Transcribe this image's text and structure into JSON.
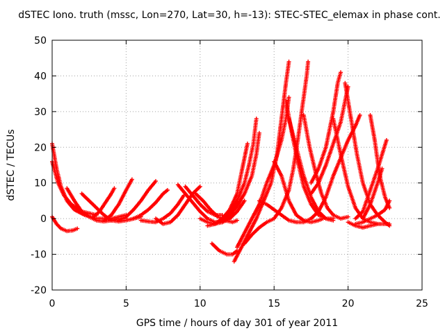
{
  "chart_data": {
    "type": "scatter",
    "title": "dSTEC Iono. truth (mssc, Lon=270, Lat=30, h=-13): STEC-STEC_elemax in phase cont.",
    "xlabel": "GPS time / hours of day 301 of year 2011",
    "ylabel": "dSTEC  / TECUs",
    "xlim": [
      0,
      25
    ],
    "ylim": [
      -20,
      50
    ],
    "xticks": [
      0,
      5,
      10,
      15,
      20,
      25
    ],
    "yticks": [
      -20,
      -10,
      0,
      10,
      20,
      30,
      40,
      50
    ],
    "grid": true,
    "marker": "+",
    "series_color": "#ff0000",
    "arcs": [
      [
        [
          0.0,
          21.0
        ],
        [
          0.3,
          14.0
        ],
        [
          0.6,
          9.0
        ],
        [
          1.0,
          5.0
        ],
        [
          1.5,
          2.5
        ],
        [
          2.2,
          1.0
        ],
        [
          3.0,
          0.0
        ],
        [
          4.0,
          0.0
        ],
        [
          5.0,
          1.0
        ]
      ],
      [
        [
          0.0,
          16.0
        ],
        [
          0.4,
          10.0
        ],
        [
          0.8,
          6.5
        ],
        [
          1.3,
          4.0
        ],
        [
          2.0,
          2.0
        ],
        [
          3.0,
          1.0
        ]
      ],
      [
        [
          0.0,
          0.5
        ],
        [
          0.3,
          -1.5
        ],
        [
          0.6,
          -2.8
        ],
        [
          1.0,
          -3.5
        ],
        [
          1.4,
          -3.3
        ],
        [
          1.7,
          -2.8
        ]
      ],
      [
        [
          1.0,
          8.5
        ],
        [
          1.5,
          5.0
        ],
        [
          2.0,
          2.0
        ],
        [
          2.5,
          0.5
        ],
        [
          3.0,
          -0.5
        ],
        [
          3.5,
          -0.8
        ],
        [
          4.0,
          -0.5
        ],
        [
          4.5,
          0.0
        ],
        [
          5.0,
          0.0
        ]
      ],
      [
        [
          2.0,
          7.0
        ],
        [
          2.5,
          5.0
        ],
        [
          3.0,
          3.0
        ],
        [
          3.5,
          1.0
        ],
        [
          4.0,
          -0.5
        ],
        [
          4.5,
          -0.8
        ],
        [
          5.0,
          -0.5
        ],
        [
          5.5,
          0.0
        ],
        [
          6.0,
          0.5
        ]
      ],
      [
        [
          2.8,
          0.5
        ],
        [
          3.2,
          2.0
        ],
        [
          3.6,
          4.5
        ],
        [
          4.0,
          7.0
        ],
        [
          4.2,
          8.5
        ]
      ],
      [
        [
          3.5,
          -0.5
        ],
        [
          4.0,
          1.0
        ],
        [
          4.5,
          4.0
        ],
        [
          5.0,
          8.0
        ],
        [
          5.4,
          11.0
        ]
      ],
      [
        [
          4.5,
          -0.5
        ],
        [
          5.0,
          0.5
        ],
        [
          5.5,
          2.5
        ],
        [
          6.0,
          5.0
        ],
        [
          6.5,
          8.0
        ],
        [
          7.0,
          10.5
        ]
      ],
      [
        [
          5.5,
          0.0
        ],
        [
          6.0,
          1.0
        ],
        [
          6.5,
          2.5
        ],
        [
          7.0,
          4.5
        ],
        [
          7.5,
          7.0
        ],
        [
          7.8,
          8.0
        ]
      ],
      [
        [
          6.0,
          -0.5
        ],
        [
          6.5,
          -0.8
        ],
        [
          7.0,
          -1.0
        ],
        [
          7.5,
          0.0
        ],
        [
          8.0,
          1.5
        ],
        [
          8.5,
          4.0
        ],
        [
          8.9,
          6.5
        ]
      ],
      [
        [
          7.0,
          0.0
        ],
        [
          7.5,
          -1.5
        ],
        [
          8.0,
          -1.0
        ],
        [
          8.5,
          1.0
        ],
        [
          9.0,
          4.0
        ],
        [
          9.5,
          7.0
        ],
        [
          10.0,
          9.0
        ]
      ],
      [
        [
          8.5,
          9.5
        ],
        [
          9.0,
          7.0
        ],
        [
          9.5,
          4.5
        ],
        [
          10.0,
          2.0
        ],
        [
          10.5,
          0.0
        ],
        [
          11.0,
          -1.0
        ],
        [
          11.5,
          -1.0
        ],
        [
          12.0,
          0.0
        ]
      ],
      [
        [
          9.0,
          9.0
        ],
        [
          9.5,
          6.5
        ],
        [
          10.0,
          4.0
        ],
        [
          10.5,
          2.0
        ],
        [
          11.0,
          1.0
        ],
        [
          11.5,
          1.0
        ]
      ],
      [
        [
          9.7,
          7.0
        ],
        [
          10.2,
          5.0
        ],
        [
          10.7,
          2.5
        ],
        [
          11.2,
          0.5
        ],
        [
          11.7,
          -0.5
        ],
        [
          12.2,
          -1.0
        ],
        [
          12.5,
          -0.5
        ]
      ],
      [
        [
          10.0,
          0.0
        ],
        [
          10.5,
          -1.0
        ],
        [
          11.0,
          -1.5
        ],
        [
          11.5,
          -1.0
        ],
        [
          12.0,
          0.0
        ],
        [
          12.5,
          2.0
        ],
        [
          13.0,
          5.0
        ]
      ],
      [
        [
          10.5,
          -2.0
        ],
        [
          11.0,
          -1.5
        ],
        [
          11.5,
          0.0
        ],
        [
          12.0,
          2.5
        ],
        [
          12.5,
          7.0
        ],
        [
          12.8,
          13.0
        ],
        [
          13.0,
          17.0
        ],
        [
          13.2,
          21.0
        ]
      ],
      [
        [
          11.0,
          -1.5
        ],
        [
          11.5,
          -0.5
        ],
        [
          12.0,
          2.0
        ],
        [
          12.5,
          5.0
        ],
        [
          13.0,
          10.0
        ],
        [
          13.3,
          15.0
        ],
        [
          13.6,
          21.0
        ],
        [
          13.8,
          28.0
        ]
      ],
      [
        [
          11.5,
          -1.0
        ],
        [
          12.0,
          1.0
        ],
        [
          12.5,
          3.5
        ],
        [
          13.0,
          7.0
        ],
        [
          13.5,
          12.0
        ],
        [
          13.8,
          18.0
        ],
        [
          14.0,
          24.0
        ]
      ],
      [
        [
          10.8,
          -7.0
        ],
        [
          11.3,
          -9.0
        ],
        [
          11.8,
          -10.0
        ],
        [
          12.2,
          -10.0
        ],
        [
          12.5,
          -9.0
        ]
      ],
      [
        [
          12.3,
          -12.0
        ],
        [
          12.8,
          -8.0
        ],
        [
          13.3,
          -4.0
        ],
        [
          13.8,
          0.0
        ],
        [
          14.3,
          5.0
        ],
        [
          14.8,
          10.0
        ],
        [
          15.2,
          18.0
        ],
        [
          15.5,
          28.0
        ],
        [
          15.8,
          38.0
        ],
        [
          16.0,
          44.0
        ]
      ],
      [
        [
          12.5,
          -8.0
        ],
        [
          13.0,
          -4.0
        ],
        [
          13.5,
          0.0
        ],
        [
          14.0,
          4.0
        ],
        [
          14.5,
          10.0
        ],
        [
          15.0,
          15.0
        ],
        [
          15.5,
          22.0
        ],
        [
          15.8,
          28.0
        ],
        [
          16.0,
          34.0
        ]
      ],
      [
        [
          13.0,
          -7.0
        ],
        [
          13.5,
          -4.5
        ],
        [
          14.0,
          -2.5
        ],
        [
          14.5,
          -1.0
        ],
        [
          15.0,
          0.0
        ],
        [
          15.5,
          3.0
        ],
        [
          16.0,
          8.0
        ],
        [
          16.3,
          14.0
        ],
        [
          16.6,
          22.0
        ],
        [
          16.8,
          28.0
        ],
        [
          17.0,
          34.0
        ],
        [
          17.2,
          40.0
        ],
        [
          17.3,
          44.0
        ]
      ],
      [
        [
          14.0,
          5.0
        ],
        [
          14.5,
          4.0
        ],
        [
          15.0,
          2.5
        ],
        [
          15.5,
          1.0
        ],
        [
          16.0,
          -0.5
        ],
        [
          16.5,
          -1.0
        ],
        [
          17.0,
          -1.0
        ],
        [
          17.5,
          0.0
        ]
      ],
      [
        [
          15.0,
          16.0
        ],
        [
          15.5,
          12.0
        ],
        [
          16.0,
          5.0
        ],
        [
          16.5,
          1.0
        ],
        [
          17.0,
          -0.5
        ],
        [
          17.5,
          -1.0
        ],
        [
          18.0,
          -0.5
        ],
        [
          18.3,
          0.0
        ]
      ],
      [
        [
          15.8,
          33.0
        ],
        [
          16.2,
          24.0
        ],
        [
          16.6,
          16.0
        ],
        [
          17.0,
          9.0
        ],
        [
          17.5,
          4.0
        ],
        [
          18.0,
          1.0
        ],
        [
          18.5,
          0.0
        ],
        [
          19.0,
          0.0
        ]
      ],
      [
        [
          16.0,
          28.0
        ],
        [
          16.5,
          20.0
        ],
        [
          17.0,
          12.0
        ],
        [
          17.5,
          6.0
        ],
        [
          18.0,
          2.0
        ],
        [
          18.5,
          0.0
        ],
        [
          19.0,
          -0.5
        ]
      ],
      [
        [
          17.0,
          29.0
        ],
        [
          17.4,
          20.0
        ],
        [
          17.8,
          13.0
        ],
        [
          18.2,
          7.0
        ],
        [
          18.6,
          3.0
        ],
        [
          19.0,
          1.0
        ],
        [
          19.5,
          0.0
        ],
        [
          20.0,
          0.5
        ]
      ],
      [
        [
          17.5,
          10.0
        ],
        [
          18.0,
          14.0
        ],
        [
          18.5,
          20.0
        ],
        [
          19.0,
          30.0
        ],
        [
          19.3,
          38.0
        ],
        [
          19.5,
          41.0
        ]
      ],
      [
        [
          17.5,
          7.0
        ],
        [
          18.0,
          10.0
        ],
        [
          18.5,
          15.0
        ],
        [
          19.0,
          21.0
        ],
        [
          19.5,
          27.0
        ],
        [
          19.8,
          33.0
        ],
        [
          20.0,
          37.0
        ]
      ],
      [
        [
          17.5,
          0.0
        ],
        [
          18.0,
          2.0
        ],
        [
          18.5,
          6.0
        ],
        [
          19.0,
          12.0
        ],
        [
          19.5,
          17.0
        ],
        [
          20.0,
          22.0
        ],
        [
          20.5,
          26.0
        ],
        [
          20.8,
          29.0
        ]
      ],
      [
        [
          19.8,
          38.0
        ],
        [
          20.2,
          28.0
        ],
        [
          20.6,
          18.0
        ],
        [
          21.0,
          10.0
        ],
        [
          21.5,
          4.0
        ],
        [
          22.0,
          1.0
        ],
        [
          22.5,
          -1.0
        ],
        [
          22.8,
          -2.0
        ]
      ],
      [
        [
          19.0,
          28.0
        ],
        [
          19.5,
          18.0
        ],
        [
          20.0,
          9.0
        ],
        [
          20.5,
          3.0
        ],
        [
          21.0,
          0.0
        ],
        [
          21.5,
          -1.0
        ],
        [
          22.0,
          -1.5
        ]
      ],
      [
        [
          20.5,
          -1.5
        ],
        [
          21.0,
          -1.0
        ],
        [
          21.5,
          0.0
        ],
        [
          22.0,
          1.0
        ],
        [
          22.5,
          2.5
        ],
        [
          22.8,
          5.0
        ]
      ],
      [
        [
          21.5,
          29.0
        ],
        [
          21.8,
          22.0
        ],
        [
          22.0,
          16.0
        ],
        [
          22.2,
          11.0
        ],
        [
          22.5,
          6.0
        ],
        [
          22.8,
          3.0
        ]
      ],
      [
        [
          20.5,
          0.0
        ],
        [
          21.0,
          2.0
        ],
        [
          21.5,
          8.0
        ],
        [
          22.0,
          14.0
        ],
        [
          22.3,
          18.0
        ],
        [
          22.6,
          22.0
        ]
      ],
      [
        [
          21.0,
          0.0
        ],
        [
          21.5,
          4.0
        ],
        [
          22.0,
          10.0
        ],
        [
          22.3,
          14.0
        ]
      ],
      [
        [
          20.0,
          -1.0
        ],
        [
          20.5,
          -2.0
        ],
        [
          21.0,
          -2.5
        ],
        [
          21.5,
          -2.0
        ],
        [
          22.0,
          -1.5
        ],
        [
          22.5,
          -1.5
        ],
        [
          22.8,
          -1.5
        ]
      ]
    ]
  }
}
